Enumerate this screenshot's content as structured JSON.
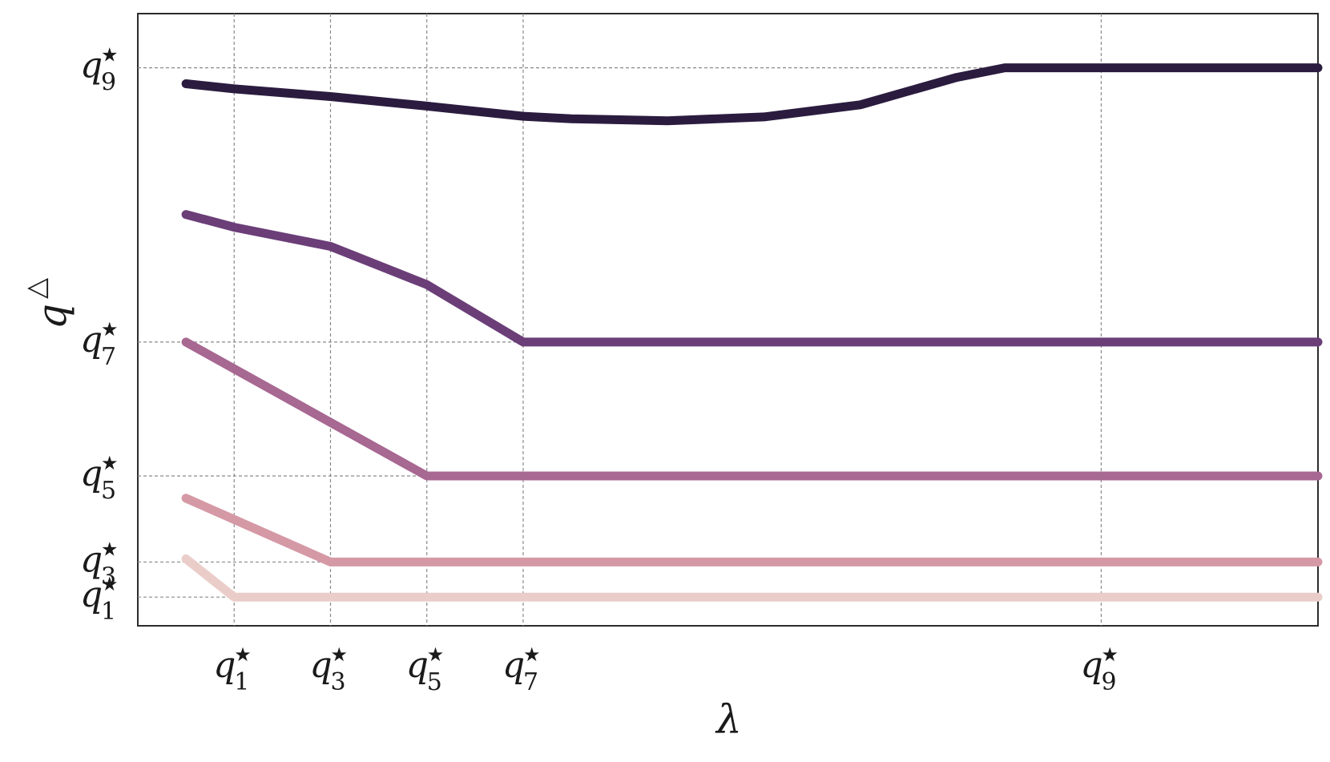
{
  "chart_data": {
    "type": "line",
    "xlabel": "λ",
    "ylabel": {
      "base": "q",
      "sup": "△"
    },
    "x_range": [
      -1.0,
      23.5
    ],
    "y_range": [
      0.55,
      10.15
    ],
    "grid": true,
    "x_ticks": [
      {
        "value": 1,
        "base": "q",
        "star": "★",
        "sub": "1"
      },
      {
        "value": 3,
        "base": "q",
        "star": "★",
        "sub": "3"
      },
      {
        "value": 5,
        "base": "q",
        "star": "★",
        "sub": "5"
      },
      {
        "value": 7,
        "base": "q",
        "star": "★",
        "sub": "7"
      },
      {
        "value": 9,
        "base": "q",
        "star": "★",
        "sub": "9"
      }
    ],
    "y_ticks": [
      {
        "value": 1,
        "base": "q",
        "star": "★",
        "sub": "1"
      },
      {
        "value": 3,
        "base": "q",
        "star": "★",
        "sub": "3"
      },
      {
        "value": 5,
        "base": "q",
        "star": "★",
        "sub": "5"
      },
      {
        "value": 7,
        "base": "q",
        "star": "★",
        "sub": "7"
      },
      {
        "value": 9,
        "base": "q",
        "star": "★",
        "sub": "9"
      }
    ],
    "series": [
      {
        "color": "#eacdc9",
        "points": [
          [
            0,
            1.6
          ],
          [
            1,
            1
          ],
          [
            23.5,
            1
          ]
        ]
      },
      {
        "color": "#d599a6",
        "points": [
          [
            0,
            2.55
          ],
          [
            3,
            1.55
          ],
          [
            23.5,
            1.55
          ]
        ]
      },
      {
        "color": "#a76892",
        "points": [
          [
            0,
            5
          ],
          [
            5,
            2.9
          ],
          [
            23.5,
            2.9
          ]
        ]
      },
      {
        "color": "#6b3e78",
        "points": [
          [
            0,
            7
          ],
          [
            1,
            6.8
          ],
          [
            3,
            6.5
          ],
          [
            5,
            5.9
          ],
          [
            7,
            5
          ],
          [
            23.5,
            5
          ]
        ]
      },
      {
        "color": "#2b1c3f",
        "points": [
          [
            0,
            9.05
          ],
          [
            1,
            8.97
          ],
          [
            3,
            8.85
          ],
          [
            5,
            8.7
          ],
          [
            7,
            8.54
          ],
          [
            8,
            8.5
          ],
          [
            10,
            8.47
          ],
          [
            12,
            8.53
          ],
          [
            14,
            8.72
          ],
          [
            16,
            9.15
          ],
          [
            17,
            9.3
          ],
          [
            19,
            9.3
          ],
          [
            21,
            9.3
          ],
          [
            23.5,
            9.3
          ]
        ]
      }
    ]
  }
}
